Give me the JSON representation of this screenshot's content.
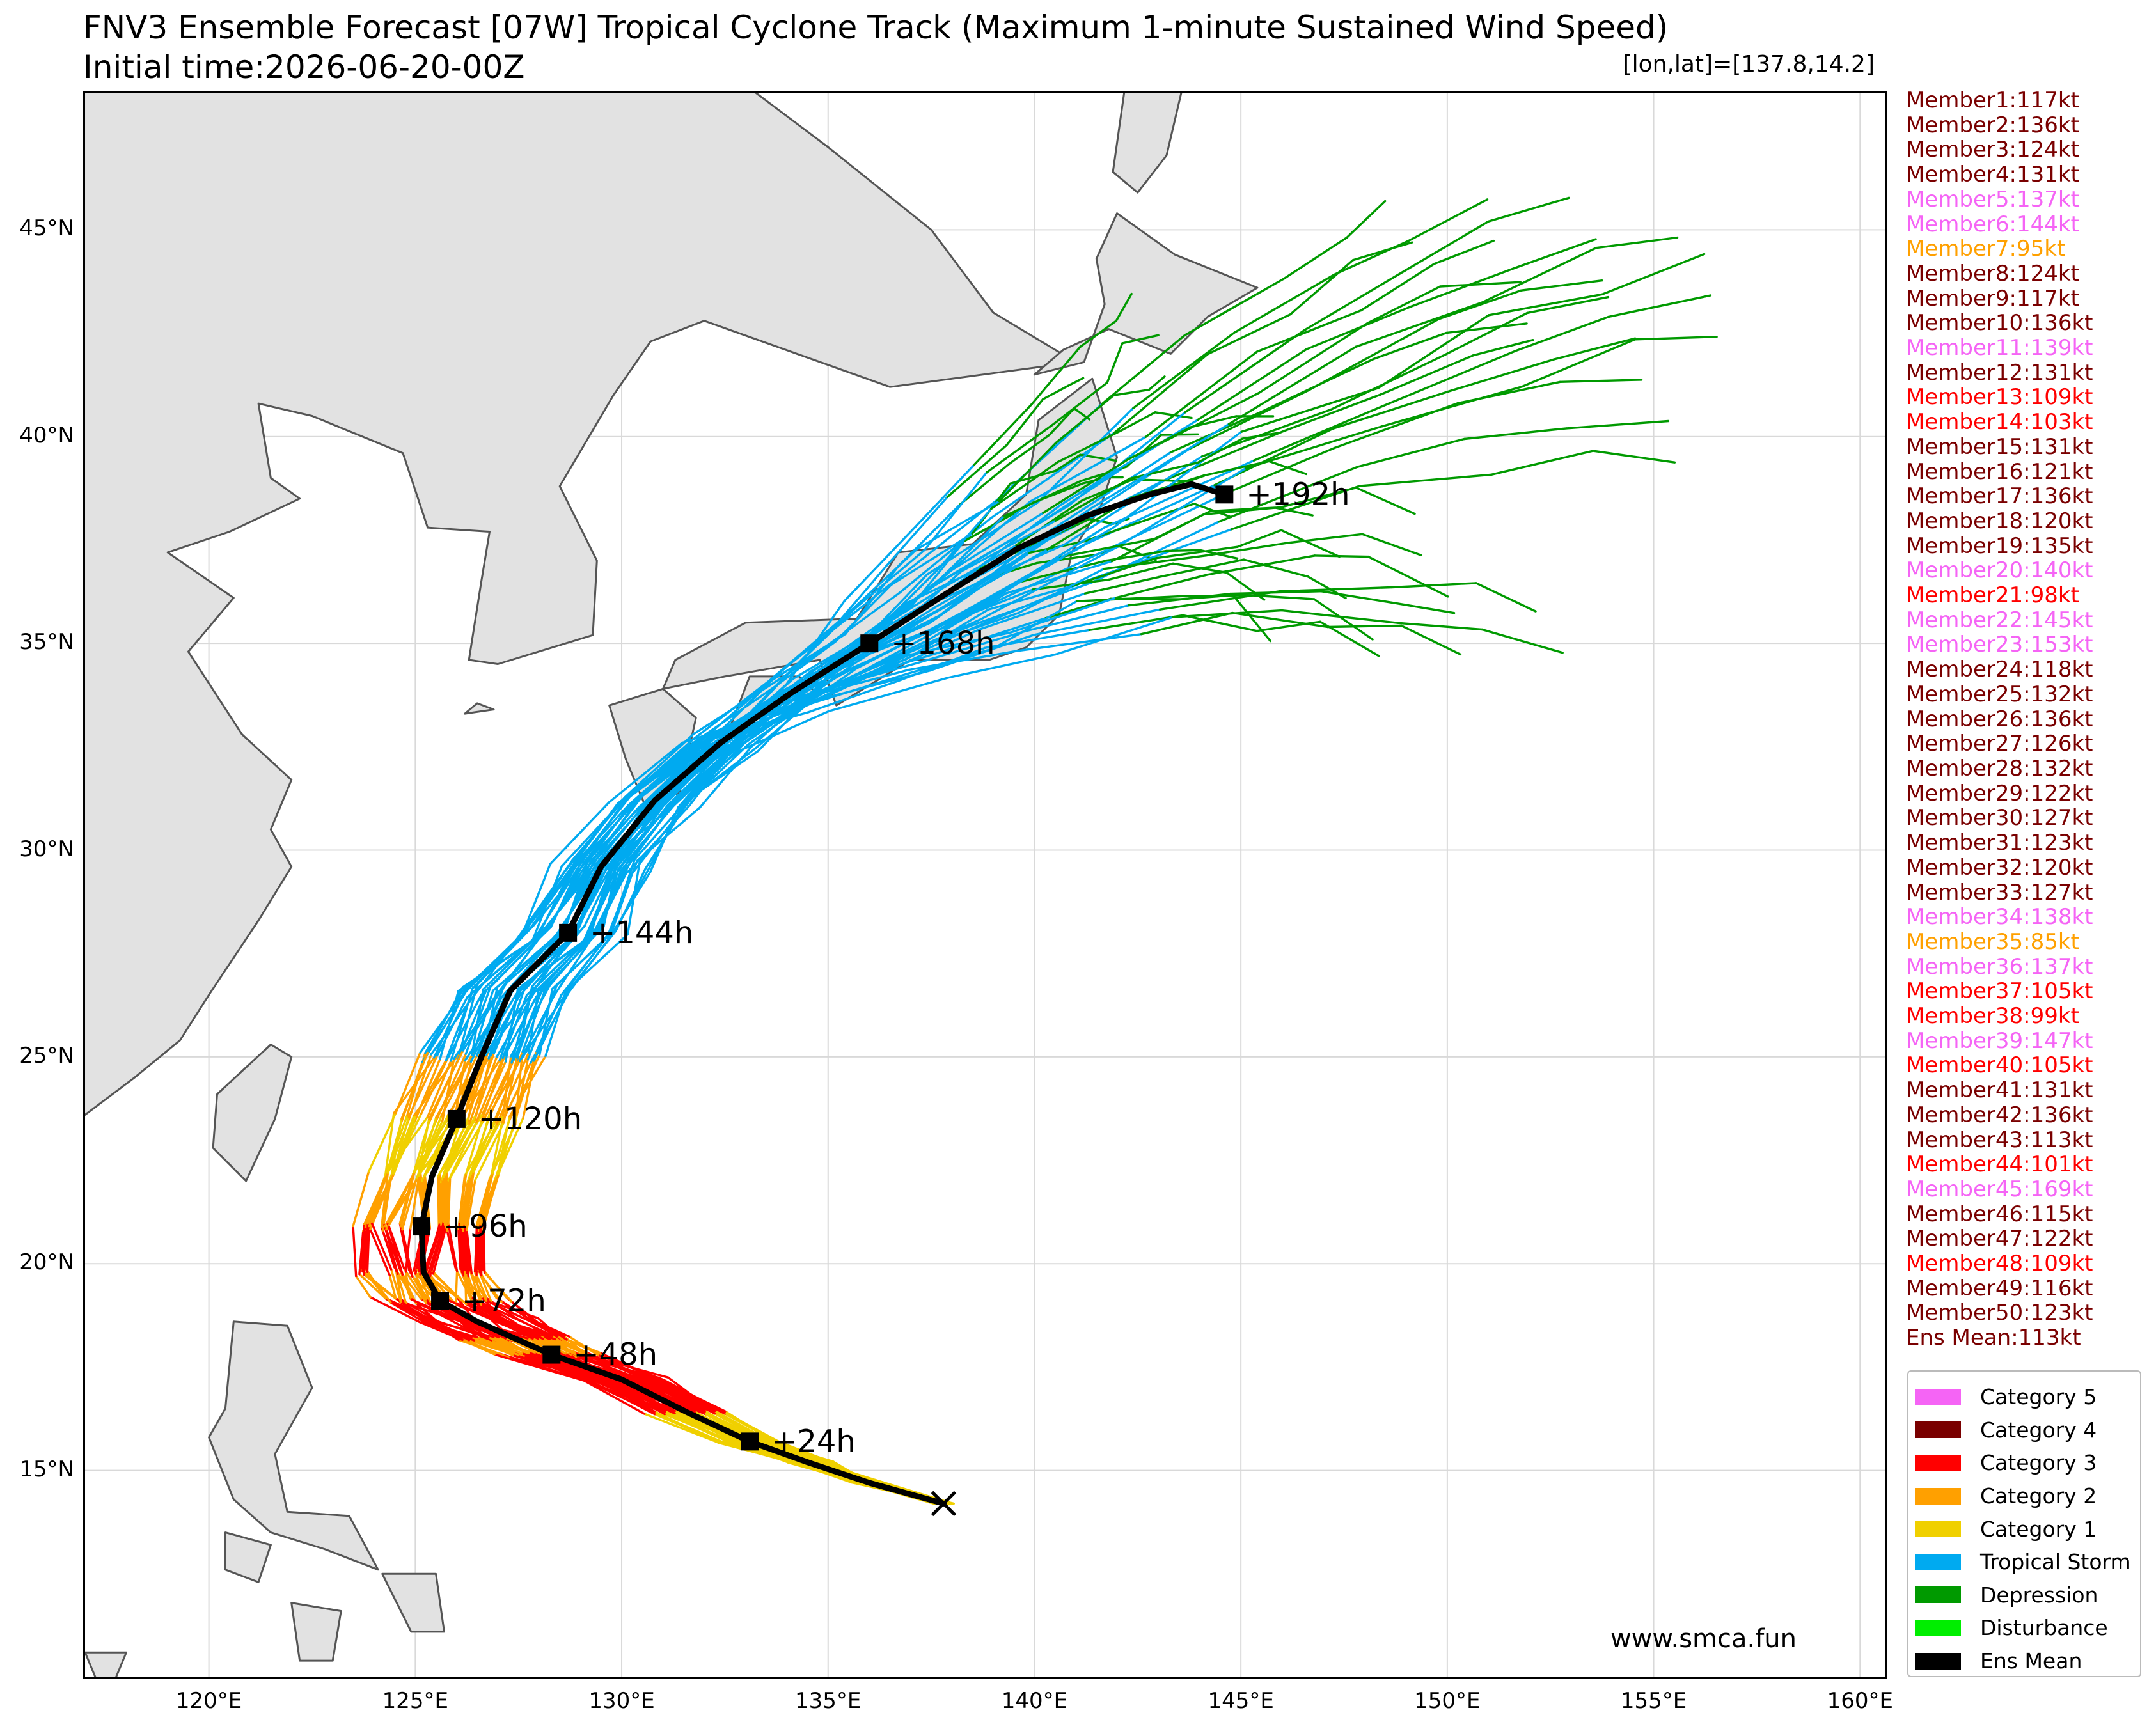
{
  "title": {
    "line1": "FNV3 Ensemble Forecast [07W] Tropical Cyclone Track (Maximum 1-minute Sustained Wind Speed)",
    "line2": "Initial time:2026-06-20-00Z"
  },
  "coord_readout": "[lon,lat]=[137.8,14.2]",
  "axes": {
    "lon_range": [
      117,
      160.6
    ],
    "lat_range": [
      10,
      48.3
    ],
    "lat_ticks": [
      {
        "value": 15,
        "label": "15°N"
      },
      {
        "value": 20,
        "label": "20°N"
      },
      {
        "value": 25,
        "label": "25°N"
      },
      {
        "value": 30,
        "label": "30°N"
      },
      {
        "value": 35,
        "label": "35°N"
      },
      {
        "value": 40,
        "label": "40°N"
      },
      {
        "value": 45,
        "label": "45°N"
      }
    ],
    "lon_ticks": [
      {
        "value": 120,
        "label": "120°E"
      },
      {
        "value": 125,
        "label": "125°E"
      },
      {
        "value": 130,
        "label": "130°E"
      },
      {
        "value": 135,
        "label": "135°E"
      },
      {
        "value": 140,
        "label": "140°E"
      },
      {
        "value": 145,
        "label": "145°E"
      },
      {
        "value": 150,
        "label": "150°E"
      },
      {
        "value": 155,
        "label": "155°E"
      },
      {
        "value": 160,
        "label": "160°E"
      }
    ],
    "grid": true
  },
  "colors": {
    "land": "#e2e2e2",
    "coast": "#555555",
    "grid": "#d9d9d9",
    "cat5": "#f564f5",
    "cat4": "#7a0000",
    "cat3": "#ff0000",
    "cat2": "#ffa000",
    "cat1": "#f0d000",
    "ts": "#00aaf0",
    "td": "#009a00",
    "dist": "#00ee00",
    "mean": "#000000"
  },
  "initial_position": {
    "lon": 137.8,
    "lat": 14.2,
    "marker": "x-icon"
  },
  "ensemble_mean": {
    "track": [
      [
        137.8,
        14.2
      ],
      [
        136,
        14.7
      ],
      [
        134.5,
        15.2
      ],
      [
        133.1,
        15.7
      ],
      [
        131.6,
        16.4
      ],
      [
        130,
        17.2
      ],
      [
        128.3,
        17.8
      ],
      [
        127.4,
        18.2
      ],
      [
        126.5,
        18.6
      ],
      [
        125.6,
        19.1
      ],
      [
        125.2,
        19.8
      ],
      [
        125.15,
        20.9
      ],
      [
        125.4,
        22.1
      ],
      [
        126,
        23.5
      ],
      [
        126.6,
        25
      ],
      [
        127.3,
        26.6
      ],
      [
        128.7,
        28
      ],
      [
        129.5,
        29.6
      ],
      [
        130.8,
        31.2
      ],
      [
        132.4,
        32.6
      ],
      [
        134.1,
        33.8
      ],
      [
        136,
        35
      ],
      [
        137.7,
        36.1
      ],
      [
        139.6,
        37.3
      ],
      [
        141.3,
        38.1
      ],
      [
        142.8,
        38.6
      ],
      [
        143.8,
        38.85
      ],
      [
        144.6,
        38.6
      ]
    ],
    "steps": [
      {
        "label": "+24h",
        "lon": 133.1,
        "lat": 15.7
      },
      {
        "label": "+48h",
        "lon": 128.3,
        "lat": 17.8
      },
      {
        "label": "+72h",
        "lon": 125.6,
        "lat": 19.1
      },
      {
        "label": "+96h",
        "lon": 125.15,
        "lat": 20.9
      },
      {
        "label": "+120h",
        "lon": 126.0,
        "lat": 23.5
      },
      {
        "label": "+144h",
        "lon": 128.7,
        "lat": 28.0
      },
      {
        "label": "+168h",
        "lon": 136.0,
        "lat": 35.0
      },
      {
        "label": "+192h",
        "lon": 144.6,
        "lat": 38.6
      }
    ]
  },
  "members": [
    {
      "label": "Member1:117kt",
      "category": "cat4"
    },
    {
      "label": "Member2:136kt",
      "category": "cat4"
    },
    {
      "label": "Member3:124kt",
      "category": "cat4"
    },
    {
      "label": "Member4:131kt",
      "category": "cat4"
    },
    {
      "label": "Member5:137kt",
      "category": "cat5"
    },
    {
      "label": "Member6:144kt",
      "category": "cat5"
    },
    {
      "label": "Member7:95kt",
      "category": "cat2"
    },
    {
      "label": "Member8:124kt",
      "category": "cat4"
    },
    {
      "label": "Member9:117kt",
      "category": "cat4"
    },
    {
      "label": "Member10:136kt",
      "category": "cat4"
    },
    {
      "label": "Member11:139kt",
      "category": "cat5"
    },
    {
      "label": "Member12:131kt",
      "category": "cat4"
    },
    {
      "label": "Member13:109kt",
      "category": "cat3"
    },
    {
      "label": "Member14:103kt",
      "category": "cat3"
    },
    {
      "label": "Member15:131kt",
      "category": "cat4"
    },
    {
      "label": "Member16:121kt",
      "category": "cat4"
    },
    {
      "label": "Member17:136kt",
      "category": "cat4"
    },
    {
      "label": "Member18:120kt",
      "category": "cat4"
    },
    {
      "label": "Member19:135kt",
      "category": "cat4"
    },
    {
      "label": "Member20:140kt",
      "category": "cat5"
    },
    {
      "label": "Member21:98kt",
      "category": "cat3"
    },
    {
      "label": "Member22:145kt",
      "category": "cat5"
    },
    {
      "label": "Member23:153kt",
      "category": "cat5"
    },
    {
      "label": "Member24:118kt",
      "category": "cat4"
    },
    {
      "label": "Member25:132kt",
      "category": "cat4"
    },
    {
      "label": "Member26:136kt",
      "category": "cat4"
    },
    {
      "label": "Member27:126kt",
      "category": "cat4"
    },
    {
      "label": "Member28:132kt",
      "category": "cat4"
    },
    {
      "label": "Member29:122kt",
      "category": "cat4"
    },
    {
      "label": "Member30:127kt",
      "category": "cat4"
    },
    {
      "label": "Member31:123kt",
      "category": "cat4"
    },
    {
      "label": "Member32:120kt",
      "category": "cat4"
    },
    {
      "label": "Member33:127kt",
      "category": "cat4"
    },
    {
      "label": "Member34:138kt",
      "category": "cat5"
    },
    {
      "label": "Member35:85kt",
      "category": "cat2"
    },
    {
      "label": "Member36:137kt",
      "category": "cat5"
    },
    {
      "label": "Member37:105kt",
      "category": "cat3"
    },
    {
      "label": "Member38:99kt",
      "category": "cat3"
    },
    {
      "label": "Member39:147kt",
      "category": "cat5"
    },
    {
      "label": "Member40:105kt",
      "category": "cat3"
    },
    {
      "label": "Member41:131kt",
      "category": "cat4"
    },
    {
      "label": "Member42:136kt",
      "category": "cat4"
    },
    {
      "label": "Member43:113kt",
      "category": "cat4"
    },
    {
      "label": "Member44:101kt",
      "category": "cat3"
    },
    {
      "label": "Member45:169kt",
      "category": "cat5"
    },
    {
      "label": "Member46:115kt",
      "category": "cat4"
    },
    {
      "label": "Member47:122kt",
      "category": "cat4"
    },
    {
      "label": "Member48:109kt",
      "category": "cat3"
    },
    {
      "label": "Member49:116kt",
      "category": "cat4"
    },
    {
      "label": "Member50:123kt",
      "category": "cat4"
    }
  ],
  "ens_mean_label": "Ens Mean:113kt",
  "legend": [
    {
      "label": "Category 5",
      "color": "#f564f5"
    },
    {
      "label": "Category 4",
      "color": "#7a0000"
    },
    {
      "label": "Category 3",
      "color": "#ff0000"
    },
    {
      "label": "Category 2",
      "color": "#ffa000"
    },
    {
      "label": "Category 1",
      "color": "#f0d000"
    },
    {
      "label": "Tropical Storm",
      "color": "#00aaf0"
    },
    {
      "label": "Depression",
      "color": "#009a00"
    },
    {
      "label": "Disturbance",
      "color": "#00ee00"
    },
    {
      "label": "Ens Mean",
      "color": "#000000"
    }
  ],
  "watermark": "www.smca.fun"
}
